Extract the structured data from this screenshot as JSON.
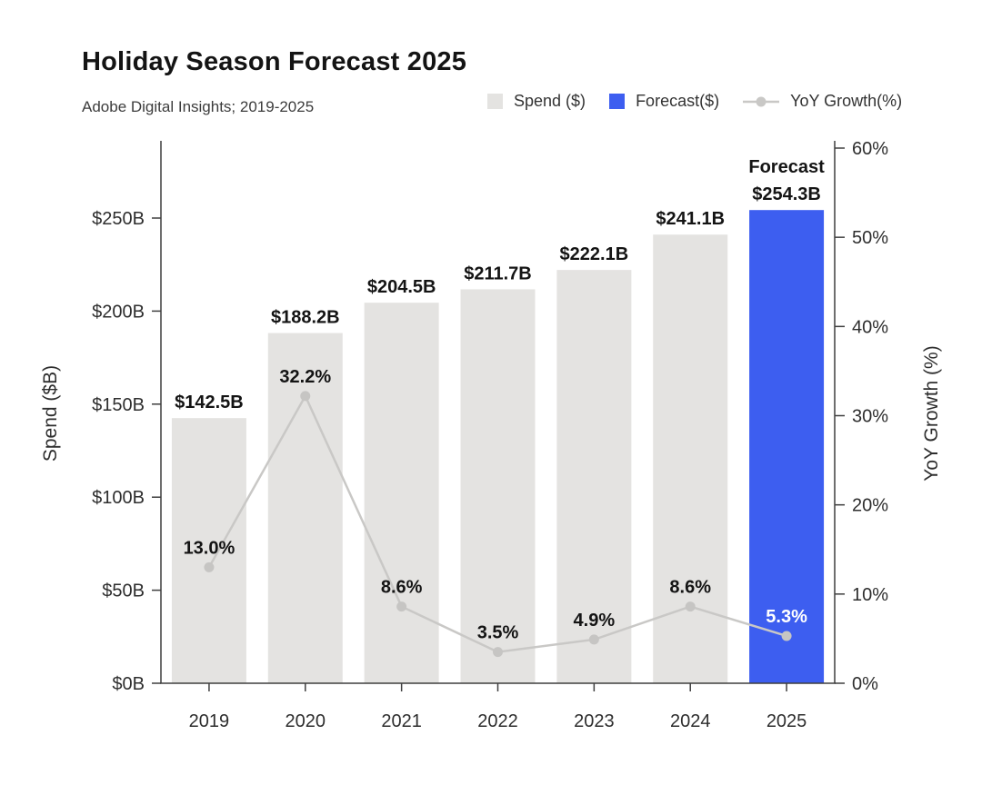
{
  "title": "Holiday Season Forecast 2025",
  "subtitle": "Adobe Digital Insights; 2019-2025",
  "legend": [
    {
      "label": "Spend ($)",
      "marker": "swatch",
      "color": "#E4E3E1"
    },
    {
      "label": "Forecast($)",
      "marker": "swatch",
      "color": "#3D5EF0"
    },
    {
      "label": "YoY Growth(%)",
      "marker": "line",
      "color": "#C9C8C6"
    }
  ],
  "chart_data": {
    "type": "bar+line",
    "title": "Holiday Season Forecast 2025",
    "subtitle": "Adobe Digital Insights; 2019-2025",
    "categories": [
      "2019",
      "2020",
      "2021",
      "2022",
      "2023",
      "2024",
      "2025"
    ],
    "series": [
      {
        "name": "Spend ($)",
        "type": "bar",
        "axis": "left",
        "values": [
          142.5,
          188.2,
          204.5,
          211.7,
          222.1,
          241.1,
          254.3
        ],
        "labels": [
          "$142.5B",
          "$188.2B",
          "$204.5B",
          "$211.7B",
          "$222.1B",
          "$241.1B",
          "$254.3B"
        ],
        "forecast_index": 6,
        "forecast_label": "Forecast"
      },
      {
        "name": "YoY Growth(%)",
        "type": "line",
        "axis": "right",
        "values": [
          13.0,
          32.2,
          8.6,
          3.5,
          4.9,
          8.6,
          5.3
        ],
        "labels": [
          "13.0%",
          "32.2%",
          "8.6%",
          "3.5%",
          "4.9%",
          "8.6%",
          "5.3%"
        ]
      }
    ],
    "left_axis": {
      "label": "Spend ($B)",
      "ticks": [
        "$0B",
        "$50B",
        "$100B",
        "$150B",
        "$200B",
        "$250B"
      ],
      "tick_values": [
        0,
        50,
        100,
        150,
        200,
        250
      ],
      "range": [
        0,
        290
      ]
    },
    "right_axis": {
      "label": "YoY Growth (%)",
      "ticks": [
        "0%",
        "10%",
        "20%",
        "30%",
        "40%",
        "50%",
        "60%"
      ],
      "tick_values": [
        0,
        10,
        20,
        30,
        40,
        50,
        60
      ],
      "range": [
        0,
        61
      ]
    },
    "grid": "off",
    "legend_position": "top-right",
    "colors": {
      "bar": "#E4E3E1",
      "forecast_bar": "#3D5EF0",
      "line": "#C9C8C6",
      "marker": "#C6C5C3",
      "axis": "#3f3f3f",
      "label_text": "#141414",
      "forecast_pct_text": "#ffffff"
    }
  }
}
